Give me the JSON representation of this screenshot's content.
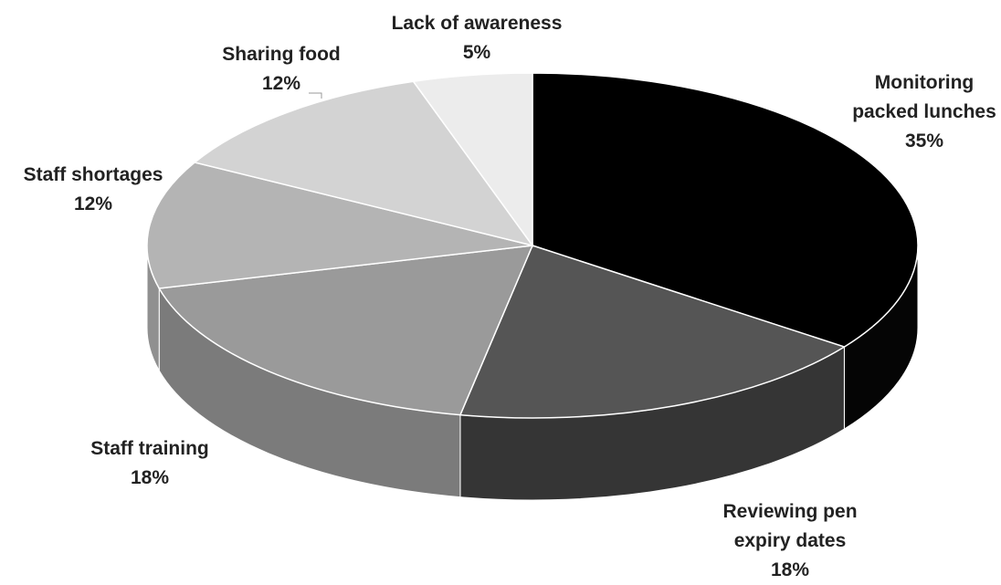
{
  "chart_data": {
    "type": "pie",
    "style": "3d",
    "categories": [
      "Monitoring packed lunches",
      "Reviewing pen expiry dates",
      "Staff training",
      "Staff shortages",
      "Sharing food",
      "Lack of awareness"
    ],
    "values": [
      35,
      18,
      18,
      12,
      12,
      5
    ],
    "value_labels": [
      "35%",
      "18%",
      "18%",
      "12%",
      "12%",
      "5%"
    ],
    "label_lines": [
      [
        "Monitoring",
        "packed lunches",
        "35%"
      ],
      [
        "Reviewing pen",
        "expiry dates",
        "18%"
      ],
      [
        "Staff training",
        "18%"
      ],
      [
        "Staff shortages",
        "12%"
      ],
      [
        "Sharing food",
        "12%"
      ],
      [
        "Lack of awareness",
        "5%"
      ]
    ],
    "colors": [
      "#000000",
      "#555555",
      "#9a9a9a",
      "#b4b4b4",
      "#d3d3d3",
      "#ececec"
    ],
    "title": "",
    "legend": "none"
  }
}
